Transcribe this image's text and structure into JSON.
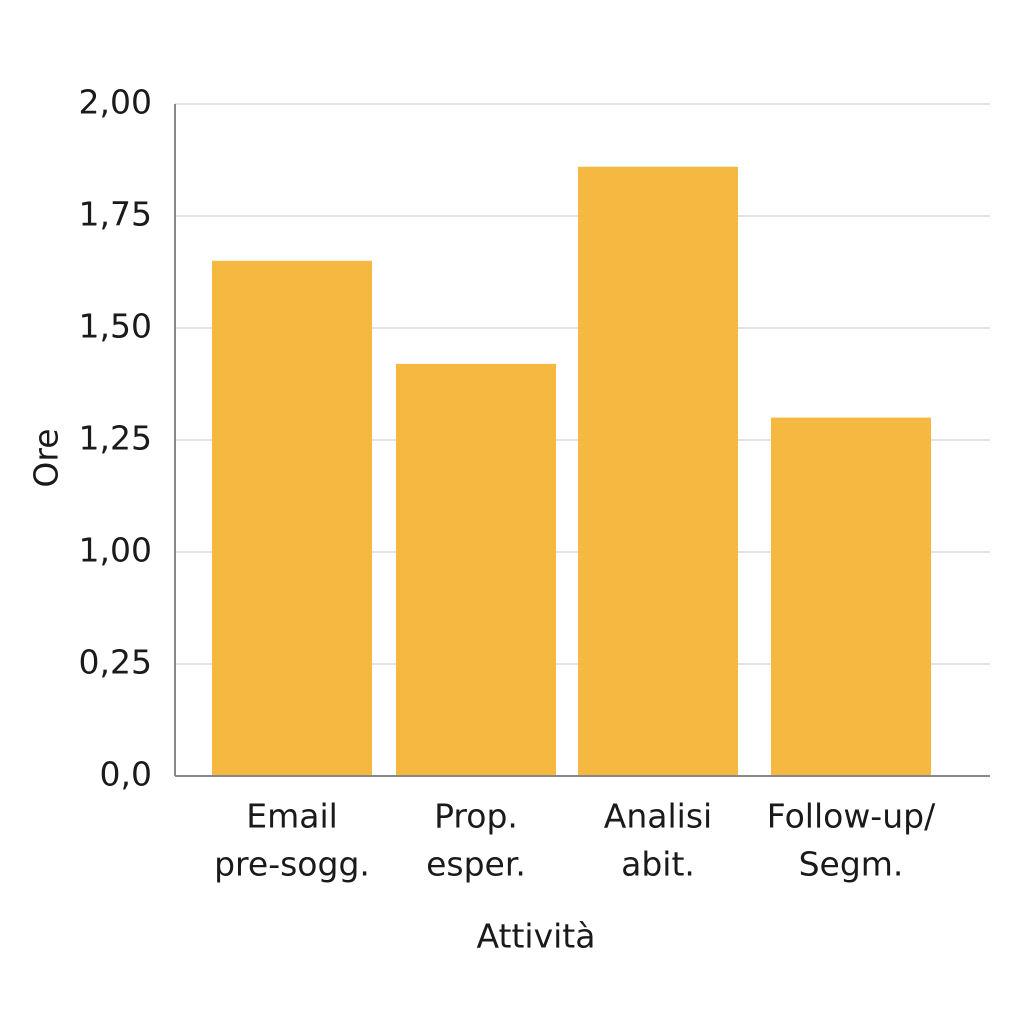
{
  "chart_data": {
    "type": "bar",
    "categories": [
      [
        "Email",
        "pre-sogg."
      ],
      [
        "Prop.",
        "esper."
      ],
      [
        "Analisi",
        "abit."
      ],
      [
        "Follow-up/",
        "Segm."
      ]
    ],
    "values": [
      1.65,
      1.42,
      1.86,
      1.3
    ],
    "color": "#f5b942",
    "x_label": "Attività",
    "y_label": "Ore",
    "ylim": [
      0,
      2
    ],
    "yticks": [
      {
        "value": 0,
        "label": "0,0"
      },
      {
        "value": 0.25,
        "label": "0,25"
      },
      {
        "value": 1.0,
        "label": "1,00"
      },
      {
        "value": 1.25,
        "label": "1,25"
      },
      {
        "value": 1.5,
        "label": "1,50"
      },
      {
        "value": 1.75,
        "label": "1,75"
      },
      {
        "value": 2.0,
        "label": "2,00"
      }
    ],
    "grid": true
  }
}
